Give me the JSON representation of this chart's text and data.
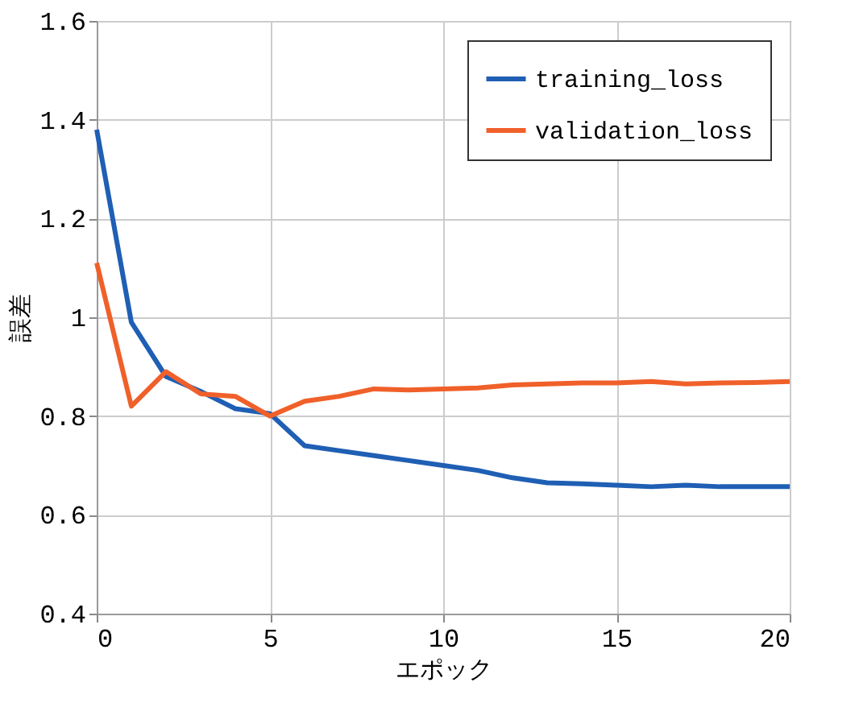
{
  "chart_data": {
    "type": "line",
    "xlabel": "エポック",
    "ylabel": "誤差",
    "x": [
      0,
      1,
      2,
      3,
      4,
      5,
      6,
      7,
      8,
      9,
      10,
      11,
      12,
      13,
      14,
      15,
      16,
      17,
      18,
      19,
      20
    ],
    "series": [
      {
        "name": "training_loss",
        "color": "#1f5fb4",
        "values": [
          1.38,
          0.99,
          0.88,
          0.85,
          0.815,
          0.805,
          0.74,
          0.73,
          0.72,
          0.71,
          0.7,
          0.69,
          0.675,
          0.665,
          0.663,
          0.66,
          0.657,
          0.66,
          0.657,
          0.657,
          0.657
        ]
      },
      {
        "name": "validation_loss",
        "color": "#f0602a",
        "values": [
          1.11,
          0.82,
          0.89,
          0.845,
          0.84,
          0.8,
          0.83,
          0.84,
          0.855,
          0.853,
          0.855,
          0.857,
          0.863,
          0.865,
          0.867,
          0.867,
          0.87,
          0.865,
          0.867,
          0.868,
          0.87
        ]
      }
    ],
    "xlim": [
      0,
      20
    ],
    "xticks": [
      0,
      5,
      10,
      15,
      20
    ],
    "ylim": [
      0.4,
      1.6
    ],
    "yticks": [
      0.4,
      0.6,
      0.8,
      1,
      1.2,
      1.4,
      1.6
    ],
    "grid": true,
    "legend": "top right",
    "marker": "none",
    "line_style": "solid"
  }
}
